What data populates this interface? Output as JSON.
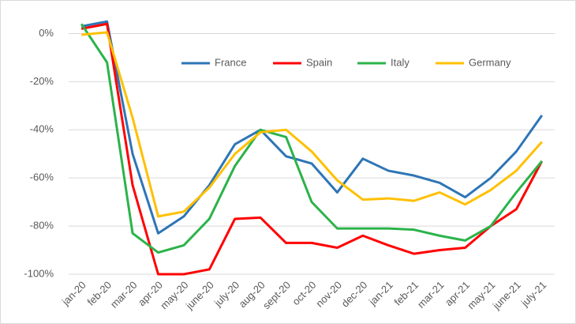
{
  "chart_data": {
    "type": "line",
    "categories": [
      "jan-20",
      "feb-20",
      "mar-20",
      "apr-20",
      "may-20",
      "june-20",
      "july-20",
      "aug-20",
      "sept-20",
      "oct-20",
      "nov-20",
      "dec-20",
      "jan-21",
      "feb-21",
      "mar-21",
      "apr-21",
      "may-21",
      "june-21",
      "july-21"
    ],
    "series": [
      {
        "name": "France",
        "color": "#2e75b6",
        "values": [
          3,
          5,
          -50,
          -83,
          -76,
          -63,
          -46,
          -40,
          -51,
          -54,
          -66,
          -52,
          -57,
          -59,
          -62,
          -68,
          -60,
          -49,
          -34
        ]
      },
      {
        "name": "Spain",
        "color": "#ff0000",
        "values": [
          2,
          4,
          -63,
          -100,
          -100,
          -98,
          -77,
          -76.5,
          -87,
          -87,
          -89,
          -84,
          -88,
          -91.5,
          -90,
          -89,
          -80,
          -73,
          -53
        ]
      },
      {
        "name": "Italy",
        "color": "#2bb34a",
        "values": [
          4,
          -12,
          -83,
          -91,
          -88,
          -77,
          -55,
          -40,
          -43,
          -70,
          -81,
          -81,
          -81,
          -81.5,
          -84,
          -86,
          -80,
          -66,
          -53
        ]
      },
      {
        "name": "Germany",
        "color": "#ffc000",
        "values": [
          -0.5,
          0.5,
          -35,
          -76,
          -74,
          -64,
          -50,
          -41,
          -40,
          -49,
          -61,
          -69,
          -68.5,
          -69.5,
          -66,
          -71,
          -65,
          -57,
          -45
        ]
      }
    ],
    "ylim": [
      -100,
      10
    ],
    "yticks": [
      {
        "value": 0,
        "label": "0%"
      },
      {
        "value": -20,
        "label": "-20%"
      },
      {
        "value": -40,
        "label": "-40%"
      },
      {
        "value": -60,
        "label": "-60%"
      },
      {
        "value": -80,
        "label": "-80%"
      },
      {
        "value": -100,
        "label": "-100%"
      }
    ],
    "grid": true,
    "legend": "top"
  }
}
